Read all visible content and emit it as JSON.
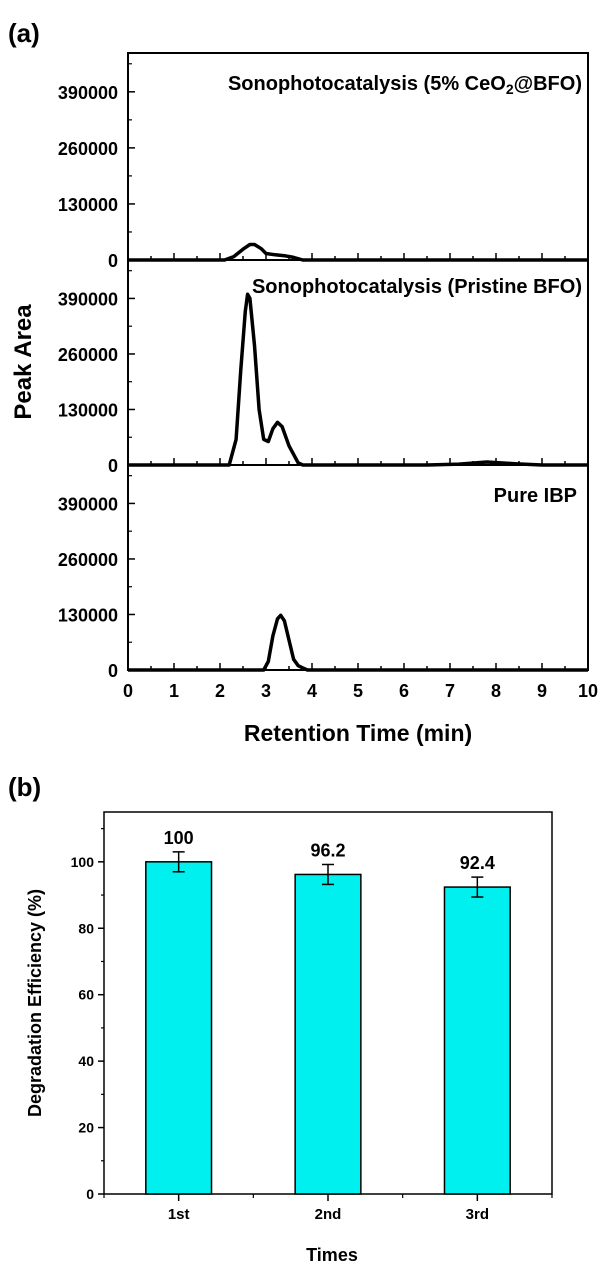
{
  "panel_labels": {
    "a": "(a)",
    "b": "(b)"
  },
  "chart_data": [
    {
      "type": "line",
      "panel": "(a)",
      "xlabel": "Retention Time (min)",
      "ylabel": "Peak Area",
      "xlim": [
        0,
        10
      ],
      "ylim": [
        0,
        480000
      ],
      "x_ticks": [
        "0",
        "1",
        "2",
        "3",
        "4",
        "5",
        "6",
        "7",
        "8",
        "9",
        "10"
      ],
      "y_ticks": [
        "0",
        "130000",
        "260000",
        "390000"
      ],
      "subplots": [
        {
          "name": "Sonophotocatalysis (5% CeO2@BFO)",
          "label_main": "Sonophotocatalysis (5% CeO",
          "label_sub": "2",
          "label_tail": "@BFO)",
          "points": [
            [
              0,
              0
            ],
            [
              2.1,
              0
            ],
            [
              2.3,
              8000
            ],
            [
              2.5,
              25000
            ],
            [
              2.65,
              36000
            ],
            [
              2.75,
              36000
            ],
            [
              2.9,
              26000
            ],
            [
              3.0,
              15000
            ],
            [
              3.2,
              12000
            ],
            [
              3.4,
              10000
            ],
            [
              3.6,
              6000
            ],
            [
              3.8,
              0
            ],
            [
              10,
              0
            ]
          ]
        },
        {
          "name": "Sonophotocatalysis (Pristine BFO)",
          "label_main": "Sonophotocatalysis (Pristine BFO)",
          "points": [
            [
              0,
              0
            ],
            [
              2.2,
              0
            ],
            [
              2.35,
              60000
            ],
            [
              2.45,
              220000
            ],
            [
              2.55,
              360000
            ],
            [
              2.6,
              400000
            ],
            [
              2.65,
              390000
            ],
            [
              2.75,
              280000
            ],
            [
              2.85,
              130000
            ],
            [
              2.95,
              60000
            ],
            [
              3.05,
              55000
            ],
            [
              3.15,
              85000
            ],
            [
              3.25,
              100000
            ],
            [
              3.35,
              90000
            ],
            [
              3.5,
              45000
            ],
            [
              3.7,
              5000
            ],
            [
              3.8,
              0
            ],
            [
              6.5,
              0
            ],
            [
              7.2,
              2000
            ],
            [
              7.8,
              7000
            ],
            [
              8.4,
              3000
            ],
            [
              9.0,
              0
            ],
            [
              10,
              0
            ]
          ]
        },
        {
          "name": "Pure IBP",
          "label_main": "Pure IBP",
          "points": [
            [
              0,
              0
            ],
            [
              2.95,
              0
            ],
            [
              3.05,
              20000
            ],
            [
              3.15,
              80000
            ],
            [
              3.25,
              120000
            ],
            [
              3.32,
              128000
            ],
            [
              3.4,
              115000
            ],
            [
              3.5,
              70000
            ],
            [
              3.6,
              25000
            ],
            [
              3.7,
              10000
            ],
            [
              3.8,
              5000
            ],
            [
              3.9,
              0
            ],
            [
              10,
              0
            ]
          ]
        }
      ]
    },
    {
      "type": "bar",
      "panel": "(b)",
      "categories": [
        "1st",
        "2nd",
        "3rd"
      ],
      "values": [
        100,
        96.2,
        92.4
      ],
      "value_labels": [
        "100",
        "96.2",
        "92.4"
      ],
      "errors": [
        3,
        3,
        3
      ],
      "xlabel": "Times",
      "ylabel": "Degradation Efficiency (%)",
      "ylim": [
        0,
        115
      ],
      "y_ticks": [
        "0",
        "20",
        "40",
        "60",
        "80",
        "100"
      ],
      "bar_color": "#00f0f0"
    }
  ]
}
